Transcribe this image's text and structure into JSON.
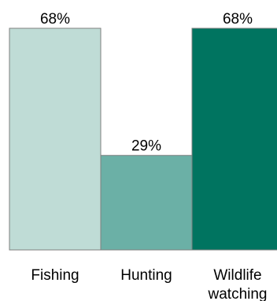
{
  "chart_data": {
    "type": "bar",
    "categories": [
      [
        "Fishing"
      ],
      [
        "Hunting"
      ],
      [
        "Wildlife",
        "watching"
      ]
    ],
    "values": [
      68,
      29,
      68
    ],
    "value_labels": [
      "68%",
      "29%",
      "68%"
    ],
    "colors": [
      "#bfdcd6",
      "#6bb0a6",
      "#007460"
    ],
    "ylim": [
      0,
      68
    ],
    "title": "",
    "xlabel": "",
    "ylabel": "",
    "grid": false,
    "legend": "none"
  }
}
